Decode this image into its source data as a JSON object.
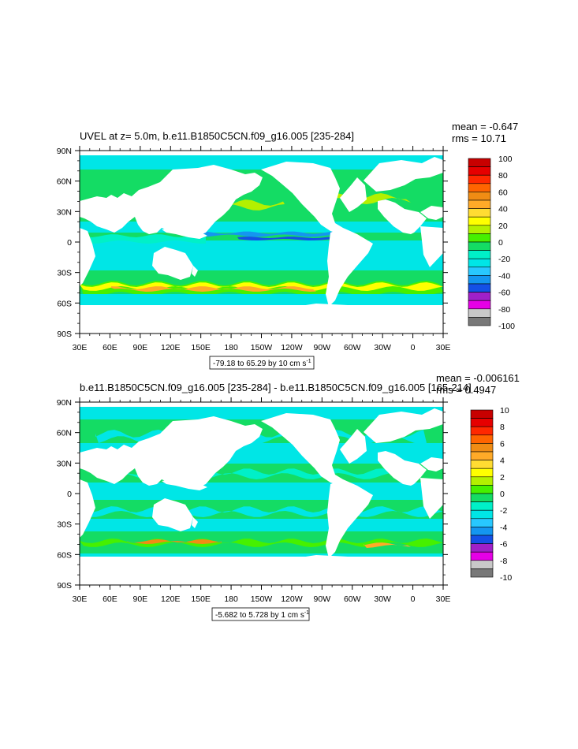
{
  "palette": [
    "#787878",
    "#c8c8c8",
    "#e600e6",
    "#a020c8",
    "#1450e6",
    "#1496f0",
    "#28c8ff",
    "#00e6e6",
    "#00f0c8",
    "#14dc64",
    "#46f000",
    "#b4f000",
    "#ffff00",
    "#ffdc32",
    "#ffaa28",
    "#f08c14",
    "#ff6400",
    "#ff2800",
    "#e60000",
    "#c80000"
  ],
  "x_ticks": [
    "30E",
    "60E",
    "90E",
    "120E",
    "150E",
    "180",
    "150W",
    "120W",
    "90W",
    "60W",
    "30W",
    "0",
    "30E"
  ],
  "y_ticks": [
    "90N",
    "60N",
    "30N",
    "0",
    "30S",
    "60S",
    "90S"
  ],
  "panels": [
    {
      "title": "UVEL at z=   5.0m, b.e11.B1850C5CN.f09_g16.005 [235-284]",
      "stat_mean": "mean = -0.647",
      "stat_rms": "rms = 10.71",
      "info_text": "-79.18 to 65.29 by 10 cm s",
      "info_sup": "-1",
      "colorbar_labels": [
        "100",
        "80",
        "60",
        "40",
        "20",
        "0",
        "-20",
        "-40",
        "-60",
        "-80",
        "-100"
      ],
      "field": "full"
    },
    {
      "title": "b.e11.B1850C5CN.f09_g16.005 [235-284] - b.e11.B1850C5CN.f09_g16.005 [165-214]",
      "stat_mean": "mean = -0.006161",
      "stat_rms": "rms = 0.4947",
      "info_text": "-5.682 to 5.728 by 1 cm s",
      "info_sup": "-1",
      "colorbar_labels": [
        "10",
        "8",
        "6",
        "4",
        "2",
        "0",
        "-2",
        "-4",
        "-6",
        "-8",
        "-10"
      ],
      "field": "difference"
    }
  ]
}
